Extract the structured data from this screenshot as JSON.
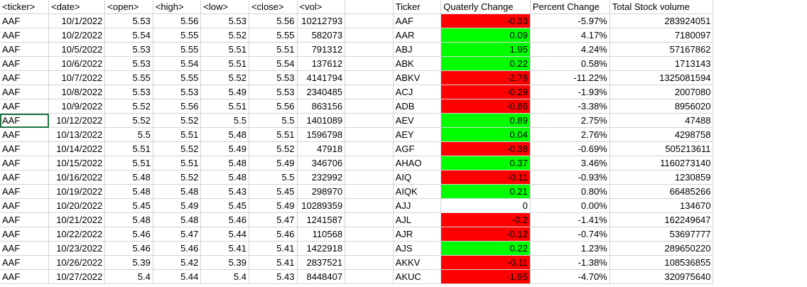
{
  "left_headers": [
    "<ticker>",
    "<date>",
    "<open>",
    "<high>",
    "<low>",
    "<close>",
    "<vol>"
  ],
  "right_headers": [
    "Ticker",
    "Quaterly Change",
    "Percent Change",
    "Total Stock volume"
  ],
  "left_rows": [
    [
      "AAF",
      "10/1/2022",
      "5.53",
      "5.56",
      "5.53",
      "5.56",
      "10212793"
    ],
    [
      "AAF",
      "10/2/2022",
      "5.54",
      "5.55",
      "5.52",
      "5.55",
      "582073"
    ],
    [
      "AAF",
      "10/5/2022",
      "5.53",
      "5.55",
      "5.51",
      "5.51",
      "791312"
    ],
    [
      "AAF",
      "10/6/2022",
      "5.53",
      "5.54",
      "5.51",
      "5.54",
      "137612"
    ],
    [
      "AAF",
      "10/7/2022",
      "5.55",
      "5.55",
      "5.52",
      "5.53",
      "4141794"
    ],
    [
      "AAF",
      "10/8/2022",
      "5.53",
      "5.53",
      "5.49",
      "5.53",
      "2340485"
    ],
    [
      "AAF",
      "10/9/2022",
      "5.52",
      "5.56",
      "5.51",
      "5.56",
      "863156"
    ],
    [
      "AAF",
      "10/12/2022",
      "5.52",
      "5.52",
      "5.5",
      "5.5",
      "1401089"
    ],
    [
      "AAF",
      "10/13/2022",
      "5.5",
      "5.51",
      "5.48",
      "5.51",
      "1596798"
    ],
    [
      "AAF",
      "10/14/2022",
      "5.51",
      "5.52",
      "5.49",
      "5.52",
      "47918"
    ],
    [
      "AAF",
      "10/15/2022",
      "5.51",
      "5.51",
      "5.48",
      "5.49",
      "346706"
    ],
    [
      "AAF",
      "10/16/2022",
      "5.48",
      "5.52",
      "5.48",
      "5.5",
      "232992"
    ],
    [
      "AAF",
      "10/19/2022",
      "5.48",
      "5.48",
      "5.43",
      "5.45",
      "298970"
    ],
    [
      "AAF",
      "10/20/2022",
      "5.45",
      "5.49",
      "5.45",
      "5.49",
      "10289359"
    ],
    [
      "AAF",
      "10/21/2022",
      "5.48",
      "5.48",
      "5.46",
      "5.47",
      "1241587"
    ],
    [
      "AAF",
      "10/22/2022",
      "5.46",
      "5.47",
      "5.44",
      "5.46",
      "110568"
    ],
    [
      "AAF",
      "10/23/2022",
      "5.46",
      "5.46",
      "5.41",
      "5.41",
      "1422918"
    ],
    [
      "AAF",
      "10/26/2022",
      "5.39",
      "5.42",
      "5.39",
      "5.41",
      "2837521"
    ],
    [
      "AAF",
      "10/27/2022",
      "5.4",
      "5.44",
      "5.4",
      "5.43",
      "8448407"
    ]
  ],
  "right_rows": [
    {
      "ticker": "AAF",
      "change": "-0.33",
      "status": "neg",
      "percent": "-5.97%",
      "volume": "283924051"
    },
    {
      "ticker": "AAR",
      "change": "0.09",
      "status": "pos",
      "percent": "4.17%",
      "volume": "7180097"
    },
    {
      "ticker": "ABJ",
      "change": "1.95",
      "status": "pos",
      "percent": "4.24%",
      "volume": "57167862"
    },
    {
      "ticker": "ABK",
      "change": "0.22",
      "status": "pos",
      "percent": "0.58%",
      "volume": "1713143"
    },
    {
      "ticker": "ABKV",
      "change": "-2.78",
      "status": "neg",
      "percent": "-11.22%",
      "volume": "1325081594"
    },
    {
      "ticker": "ACJ",
      "change": "-0.29",
      "status": "neg",
      "percent": "-1.93%",
      "volume": "2007080"
    },
    {
      "ticker": "ADB",
      "change": "-0.86",
      "status": "neg",
      "percent": "-3.38%",
      "volume": "8956020"
    },
    {
      "ticker": "AEV",
      "change": "0.89",
      "status": "pos",
      "percent": "2.75%",
      "volume": "47488"
    },
    {
      "ticker": "AEY",
      "change": "0.04",
      "status": "pos",
      "percent": "2.76%",
      "volume": "4298758"
    },
    {
      "ticker": "AGF",
      "change": "-0.38",
      "status": "neg",
      "percent": "-0.69%",
      "volume": "505213611"
    },
    {
      "ticker": "AHAO",
      "change": "0.37",
      "status": "pos",
      "percent": "3.46%",
      "volume": "1160273140"
    },
    {
      "ticker": "AIQ",
      "change": "-0.11",
      "status": "neg",
      "percent": "-0.93%",
      "volume": "1230859"
    },
    {
      "ticker": "AIQK",
      "change": "0.21",
      "status": "pos",
      "percent": "0.80%",
      "volume": "66485266"
    },
    {
      "ticker": "AJJ",
      "change": "0",
      "status": "zero",
      "percent": "0.00%",
      "volume": "134670"
    },
    {
      "ticker": "AJL",
      "change": "-0.2",
      "status": "neg",
      "percent": "-1.41%",
      "volume": "162249647"
    },
    {
      "ticker": "AJR",
      "change": "-0.12",
      "status": "neg",
      "percent": "-0.74%",
      "volume": "53697777"
    },
    {
      "ticker": "AJS",
      "change": "0.22",
      "status": "pos",
      "percent": "1.23%",
      "volume": "289650220"
    },
    {
      "ticker": "AKKV",
      "change": "-0.11",
      "status": "neg",
      "percent": "-1.38%",
      "volume": "108536855"
    },
    {
      "ticker": "AKUC",
      "change": "-1.95",
      "status": "neg",
      "percent": "-4.70%",
      "volume": "320975640"
    }
  ],
  "colors": {
    "negative_fill": "#ff0000",
    "positive_fill": "#00ff00",
    "gridline": "#d4d4d4"
  }
}
